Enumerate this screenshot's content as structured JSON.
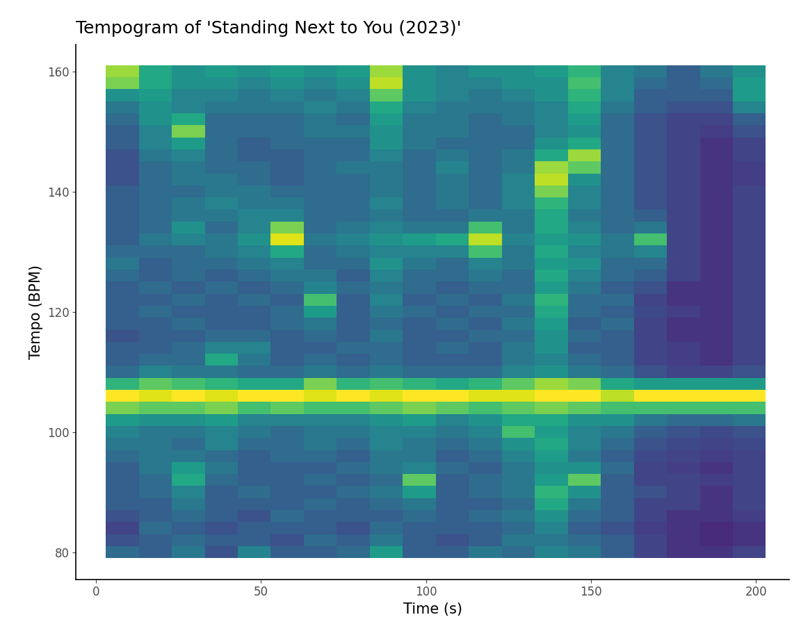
{
  "chart_data": {
    "type": "heatmap",
    "title": "Tempogram of 'Standing Next to You (2023)'",
    "x_label": "Time (s)",
    "y_label": "Tempo (BPM)",
    "color": "viridis",
    "color_range": [
      0,
      1
    ],
    "xlim": [
      -6,
      210
    ],
    "ylim": [
      75.5,
      164.4
    ],
    "xticks": [
      0,
      50,
      100,
      150,
      200
    ],
    "yticks": [
      80,
      100,
      120,
      140,
      160
    ],
    "x": [
      8,
      18,
      28,
      38,
      48,
      58,
      68,
      78,
      88,
      98,
      108,
      118,
      128,
      138,
      148,
      158,
      168,
      178,
      188,
      198
    ],
    "y": [
      80,
      82,
      84,
      86,
      88,
      90,
      92,
      94,
      96,
      98,
      100,
      102,
      104,
      106,
      108,
      110,
      112,
      114,
      116,
      118,
      120,
      122,
      124,
      126,
      128,
      130,
      132,
      134,
      136,
      138,
      140,
      142,
      144,
      146,
      148,
      150,
      152,
      154,
      156,
      158,
      160
    ],
    "cells": [
      [
        0.35,
        0.3,
        0.4,
        0.25,
        0.45,
        0.3,
        0.3,
        0.35,
        0.55,
        0.3,
        0.3,
        0.4,
        0.35,
        0.45,
        0.4,
        0.3,
        0.2,
        0.15,
        0.15,
        0.2
      ],
      [
        0.25,
        0.3,
        0.35,
        0.3,
        0.3,
        0.25,
        0.35,
        0.3,
        0.4,
        0.3,
        0.25,
        0.3,
        0.4,
        0.4,
        0.35,
        0.3,
        0.2,
        0.15,
        0.12,
        0.15
      ],
      [
        0.2,
        0.35,
        0.3,
        0.25,
        0.3,
        0.3,
        0.3,
        0.25,
        0.35,
        0.3,
        0.3,
        0.3,
        0.35,
        0.45,
        0.3,
        0.25,
        0.18,
        0.15,
        0.12,
        0.15
      ],
      [
        0.25,
        0.3,
        0.35,
        0.3,
        0.25,
        0.35,
        0.3,
        0.3,
        0.3,
        0.35,
        0.3,
        0.35,
        0.4,
        0.5,
        0.35,
        0.3,
        0.2,
        0.15,
        0.15,
        0.18
      ],
      [
        0.3,
        0.3,
        0.4,
        0.3,
        0.3,
        0.3,
        0.35,
        0.3,
        0.35,
        0.4,
        0.3,
        0.3,
        0.35,
        0.6,
        0.4,
        0.3,
        0.2,
        0.2,
        0.15,
        0.2
      ],
      [
        0.3,
        0.35,
        0.45,
        0.3,
        0.35,
        0.3,
        0.3,
        0.35,
        0.4,
        0.55,
        0.3,
        0.35,
        0.4,
        0.65,
        0.5,
        0.3,
        0.25,
        0.2,
        0.15,
        0.2
      ],
      [
        0.3,
        0.35,
        0.6,
        0.35,
        0.3,
        0.3,
        0.35,
        0.3,
        0.35,
        0.75,
        0.3,
        0.35,
        0.4,
        0.55,
        0.75,
        0.3,
        0.2,
        0.2,
        0.18,
        0.2
      ],
      [
        0.3,
        0.4,
        0.55,
        0.4,
        0.3,
        0.3,
        0.3,
        0.35,
        0.4,
        0.45,
        0.35,
        0.3,
        0.4,
        0.5,
        0.5,
        0.35,
        0.2,
        0.18,
        0.15,
        0.2
      ],
      [
        0.35,
        0.4,
        0.4,
        0.35,
        0.3,
        0.35,
        0.35,
        0.3,
        0.4,
        0.4,
        0.3,
        0.35,
        0.45,
        0.55,
        0.4,
        0.3,
        0.22,
        0.2,
        0.18,
        0.2
      ],
      [
        0.4,
        0.4,
        0.35,
        0.45,
        0.35,
        0.35,
        0.4,
        0.35,
        0.45,
        0.4,
        0.35,
        0.4,
        0.5,
        0.6,
        0.45,
        0.35,
        0.25,
        0.22,
        0.2,
        0.22
      ],
      [
        0.45,
        0.4,
        0.4,
        0.45,
        0.4,
        0.35,
        0.4,
        0.4,
        0.45,
        0.45,
        0.4,
        0.45,
        0.7,
        0.55,
        0.45,
        0.4,
        0.3,
        0.25,
        0.22,
        0.25
      ],
      [
        0.55,
        0.5,
        0.5,
        0.55,
        0.45,
        0.45,
        0.45,
        0.45,
        0.5,
        0.55,
        0.45,
        0.5,
        0.6,
        0.6,
        0.5,
        0.5,
        0.4,
        0.35,
        0.35,
        0.4
      ],
      [
        0.8,
        0.75,
        0.75,
        0.8,
        0.7,
        0.75,
        0.7,
        0.7,
        0.75,
        0.8,
        0.75,
        0.7,
        0.75,
        0.8,
        0.75,
        0.7,
        0.7,
        0.7,
        0.7,
        0.7
      ],
      [
        1,
        0.95,
        1,
        0.95,
        1,
        1,
        0.95,
        1,
        0.95,
        1,
        1,
        0.95,
        0.95,
        1,
        1,
        0.9,
        1,
        1,
        1,
        1
      ],
      [
        0.65,
        0.75,
        0.7,
        0.65,
        0.6,
        0.6,
        0.8,
        0.65,
        0.7,
        0.65,
        0.6,
        0.65,
        0.75,
        0.85,
        0.8,
        0.6,
        0.55,
        0.55,
        0.55,
        0.55
      ],
      [
        0.35,
        0.45,
        0.4,
        0.4,
        0.35,
        0.35,
        0.4,
        0.35,
        0.4,
        0.35,
        0.35,
        0.35,
        0.45,
        0.5,
        0.4,
        0.35,
        0.25,
        0.2,
        0.2,
        0.25
      ],
      [
        0.3,
        0.35,
        0.35,
        0.6,
        0.4,
        0.3,
        0.35,
        0.3,
        0.35,
        0.3,
        0.3,
        0.3,
        0.4,
        0.45,
        0.35,
        0.3,
        0.2,
        0.18,
        0.15,
        0.2
      ],
      [
        0.3,
        0.3,
        0.35,
        0.45,
        0.45,
        0.3,
        0.3,
        0.35,
        0.35,
        0.3,
        0.35,
        0.3,
        0.4,
        0.5,
        0.3,
        0.3,
        0.2,
        0.18,
        0.15,
        0.2
      ],
      [
        0.25,
        0.3,
        0.3,
        0.35,
        0.35,
        0.3,
        0.35,
        0.3,
        0.4,
        0.3,
        0.3,
        0.35,
        0.35,
        0.5,
        0.35,
        0.3,
        0.2,
        0.15,
        0.15,
        0.2
      ],
      [
        0.3,
        0.3,
        0.35,
        0.3,
        0.3,
        0.35,
        0.4,
        0.3,
        0.35,
        0.3,
        0.35,
        0.3,
        0.4,
        0.55,
        0.3,
        0.35,
        0.2,
        0.15,
        0.15,
        0.2
      ],
      [
        0.3,
        0.35,
        0.3,
        0.3,
        0.3,
        0.35,
        0.55,
        0.3,
        0.4,
        0.35,
        0.3,
        0.35,
        0.35,
        0.6,
        0.35,
        0.3,
        0.22,
        0.18,
        0.15,
        0.2
      ],
      [
        0.3,
        0.3,
        0.35,
        0.3,
        0.35,
        0.3,
        0.7,
        0.3,
        0.45,
        0.3,
        0.35,
        0.3,
        0.4,
        0.65,
        0.35,
        0.35,
        0.2,
        0.15,
        0.15,
        0.2
      ],
      [
        0.3,
        0.35,
        0.3,
        0.35,
        0.3,
        0.35,
        0.45,
        0.35,
        0.4,
        0.35,
        0.3,
        0.35,
        0.35,
        0.55,
        0.4,
        0.3,
        0.25,
        0.15,
        0.15,
        0.2
      ],
      [
        0.35,
        0.3,
        0.35,
        0.3,
        0.35,
        0.4,
        0.4,
        0.3,
        0.45,
        0.35,
        0.35,
        0.4,
        0.35,
        0.6,
        0.45,
        0.35,
        0.3,
        0.2,
        0.15,
        0.2
      ],
      [
        0.4,
        0.3,
        0.35,
        0.35,
        0.4,
        0.45,
        0.35,
        0.35,
        0.5,
        0.4,
        0.35,
        0.45,
        0.4,
        0.55,
        0.5,
        0.35,
        0.35,
        0.2,
        0.15,
        0.2
      ],
      [
        0.35,
        0.35,
        0.35,
        0.4,
        0.45,
        0.6,
        0.35,
        0.4,
        0.45,
        0.45,
        0.45,
        0.7,
        0.4,
        0.6,
        0.45,
        0.4,
        0.45,
        0.2,
        0.15,
        0.2
      ],
      [
        0.3,
        0.4,
        0.45,
        0.4,
        0.5,
        0.95,
        0.4,
        0.45,
        0.5,
        0.55,
        0.6,
        0.9,
        0.45,
        0.55,
        0.5,
        0.4,
        0.7,
        0.2,
        0.15,
        0.2
      ],
      [
        0.3,
        0.35,
        0.5,
        0.35,
        0.45,
        0.8,
        0.35,
        0.4,
        0.45,
        0.4,
        0.4,
        0.7,
        0.4,
        0.6,
        0.45,
        0.35,
        0.4,
        0.2,
        0.15,
        0.2
      ],
      [
        0.3,
        0.35,
        0.4,
        0.4,
        0.45,
        0.45,
        0.35,
        0.35,
        0.4,
        0.35,
        0.35,
        0.4,
        0.4,
        0.6,
        0.4,
        0.35,
        0.3,
        0.2,
        0.15,
        0.2
      ],
      [
        0.3,
        0.35,
        0.4,
        0.45,
        0.4,
        0.4,
        0.35,
        0.35,
        0.45,
        0.35,
        0.4,
        0.35,
        0.45,
        0.65,
        0.45,
        0.35,
        0.25,
        0.2,
        0.15,
        0.2
      ],
      [
        0.3,
        0.35,
        0.35,
        0.4,
        0.4,
        0.35,
        0.35,
        0.35,
        0.4,
        0.35,
        0.4,
        0.35,
        0.45,
        0.8,
        0.45,
        0.35,
        0.25,
        0.2,
        0.15,
        0.2
      ],
      [
        0.25,
        0.35,
        0.4,
        0.4,
        0.35,
        0.3,
        0.35,
        0.35,
        0.4,
        0.35,
        0.4,
        0.35,
        0.45,
        0.9,
        0.5,
        0.35,
        0.25,
        0.2,
        0.15,
        0.18
      ],
      [
        0.25,
        0.35,
        0.4,
        0.35,
        0.35,
        0.3,
        0.35,
        0.4,
        0.4,
        0.35,
        0.45,
        0.35,
        0.4,
        0.85,
        0.75,
        0.35,
        0.25,
        0.2,
        0.15,
        0.18
      ],
      [
        0.25,
        0.4,
        0.45,
        0.35,
        0.3,
        0.3,
        0.35,
        0.35,
        0.45,
        0.35,
        0.4,
        0.35,
        0.4,
        0.6,
        0.85,
        0.35,
        0.25,
        0.2,
        0.15,
        0.2
      ],
      [
        0.3,
        0.45,
        0.55,
        0.35,
        0.3,
        0.35,
        0.35,
        0.35,
        0.5,
        0.4,
        0.35,
        0.35,
        0.35,
        0.5,
        0.6,
        0.35,
        0.25,
        0.2,
        0.15,
        0.2
      ],
      [
        0.3,
        0.45,
        0.8,
        0.35,
        0.35,
        0.35,
        0.4,
        0.4,
        0.5,
        0.4,
        0.4,
        0.35,
        0.35,
        0.45,
        0.5,
        0.35,
        0.25,
        0.2,
        0.18,
        0.25
      ],
      [
        0.35,
        0.5,
        0.6,
        0.35,
        0.35,
        0.35,
        0.4,
        0.35,
        0.55,
        0.4,
        0.4,
        0.35,
        0.4,
        0.45,
        0.55,
        0.35,
        0.25,
        0.2,
        0.2,
        0.3
      ],
      [
        0.4,
        0.5,
        0.45,
        0.4,
        0.4,
        0.4,
        0.45,
        0.4,
        0.6,
        0.45,
        0.4,
        0.4,
        0.4,
        0.45,
        0.6,
        0.4,
        0.3,
        0.25,
        0.25,
        0.45
      ],
      [
        0.5,
        0.55,
        0.45,
        0.45,
        0.4,
        0.45,
        0.4,
        0.45,
        0.75,
        0.5,
        0.45,
        0.4,
        0.45,
        0.5,
        0.65,
        0.45,
        0.3,
        0.3,
        0.3,
        0.55
      ],
      [
        0.8,
        0.6,
        0.5,
        0.5,
        0.45,
        0.5,
        0.45,
        0.5,
        0.9,
        0.5,
        0.45,
        0.45,
        0.5,
        0.5,
        0.7,
        0.45,
        0.35,
        0.3,
        0.35,
        0.55
      ],
      [
        0.85,
        0.6,
        0.5,
        0.55,
        0.5,
        0.55,
        0.5,
        0.55,
        0.85,
        0.5,
        0.45,
        0.5,
        0.5,
        0.55,
        0.65,
        0.45,
        0.4,
        0.3,
        0.4,
        0.5
      ]
    ]
  }
}
